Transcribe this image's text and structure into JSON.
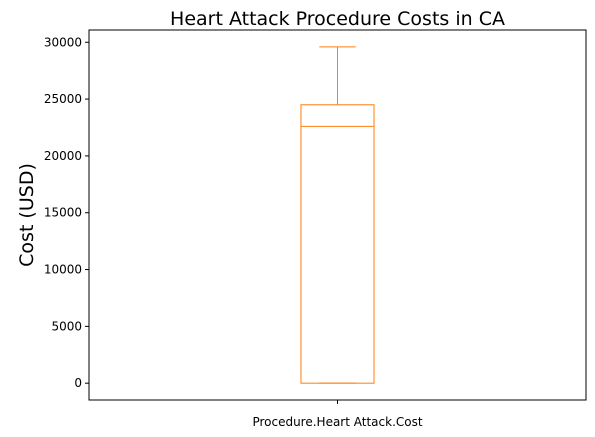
{
  "chart_data": {
    "type": "box",
    "title": "Heart Attack Procedure Costs in CA",
    "xlabel": "",
    "ylabel": "Cost (USD)",
    "categories": [
      "Procedure.Heart Attack.Cost"
    ],
    "series": [
      {
        "min": 0,
        "q1": 0,
        "median": 22600,
        "q3": 24500,
        "max": 29600
      }
    ],
    "ylim": [
      -1480,
      31080
    ],
    "yticks": [
      0,
      5000,
      10000,
      15000,
      20000,
      25000,
      30000
    ],
    "grid": false,
    "color": "#ff7f0e"
  }
}
